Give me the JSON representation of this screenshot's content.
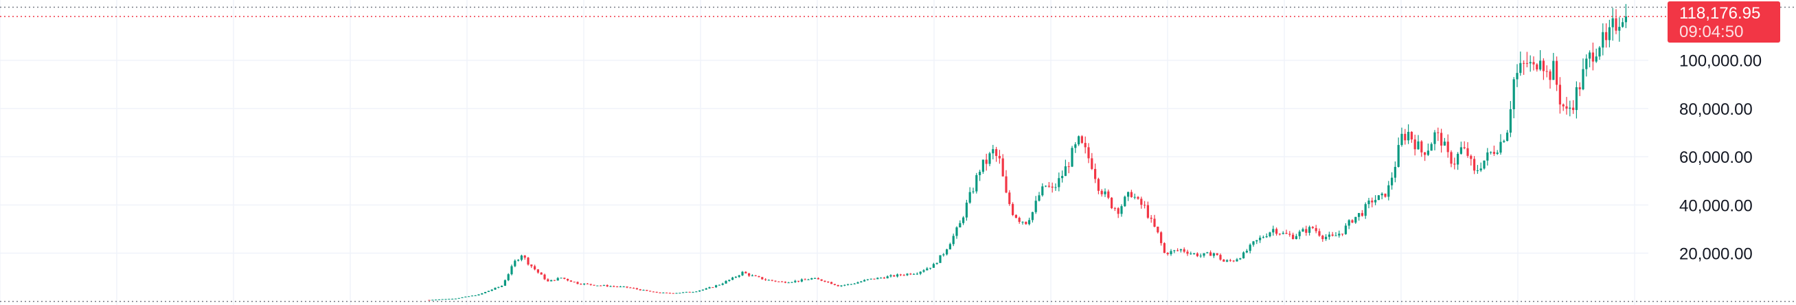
{
  "chart_data": {
    "type": "candlestick",
    "y_axis": {
      "ticks": [
        {
          "value": 20000,
          "label": "20,000.00"
        },
        {
          "value": 40000,
          "label": "40,000.00"
        },
        {
          "value": 60000,
          "label": "60,000.00"
        },
        {
          "value": 80000,
          "label": "80,000.00"
        },
        {
          "value": 100000,
          "label": "100,000.00"
        }
      ],
      "ylim": [
        -1500,
        125000
      ]
    },
    "grid": true,
    "last_price": {
      "value": 118176.95,
      "label": "118,176.95",
      "countdown": "09:04:50"
    },
    "reference_lines": {
      "high": 122000,
      "low": 0
    },
    "anchors": [
      [
        0,
        600
      ],
      [
        8,
        1200
      ],
      [
        15,
        2800
      ],
      [
        22,
        6500
      ],
      [
        26,
        16500
      ],
      [
        28,
        19500
      ],
      [
        30,
        16000
      ],
      [
        33,
        12000
      ],
      [
        36,
        8200
      ],
      [
        40,
        9800
      ],
      [
        45,
        7500
      ],
      [
        50,
        6800
      ],
      [
        56,
        6200
      ],
      [
        60,
        5800
      ],
      [
        64,
        4800
      ],
      [
        68,
        3800
      ],
      [
        72,
        3400
      ],
      [
        76,
        3600
      ],
      [
        80,
        4000
      ],
      [
        84,
        5200
      ],
      [
        88,
        7000
      ],
      [
        92,
        9500
      ],
      [
        95,
        12000
      ],
      [
        98,
        10500
      ],
      [
        102,
        9000
      ],
      [
        107,
        8000
      ],
      [
        112,
        8500
      ],
      [
        116,
        9500
      ],
      [
        120,
        8500
      ],
      [
        124,
        6500
      ],
      [
        128,
        7200
      ],
      [
        133,
        9000
      ],
      [
        138,
        10000
      ],
      [
        143,
        11000
      ],
      [
        148,
        12000
      ],
      [
        153,
        15000
      ],
      [
        156,
        20000
      ],
      [
        159,
        27000
      ],
      [
        161,
        32000
      ],
      [
        163,
        40000
      ],
      [
        165,
        47000
      ],
      [
        167,
        55000
      ],
      [
        169,
        58000
      ],
      [
        171,
        62000
      ],
      [
        173,
        58000
      ],
      [
        175,
        44000
      ],
      [
        177,
        37000
      ],
      [
        179,
        34000
      ],
      [
        181,
        33000
      ],
      [
        183,
        37000
      ],
      [
        185,
        44000
      ],
      [
        187,
        48000
      ],
      [
        189,
        46000
      ],
      [
        191,
        50000
      ],
      [
        193,
        55000
      ],
      [
        195,
        61000
      ],
      [
        197,
        66000
      ],
      [
        199,
        62000
      ],
      [
        201,
        57000
      ],
      [
        203,
        48000
      ],
      [
        205,
        44000
      ],
      [
        207,
        40000
      ],
      [
        209,
        38000
      ],
      [
        211,
        42000
      ],
      [
        213,
        45000
      ],
      [
        215,
        41000
      ],
      [
        217,
        39000
      ],
      [
        219,
        33000
      ],
      [
        221,
        28000
      ],
      [
        223,
        20000
      ],
      [
        225,
        20500
      ],
      [
        228,
        21500
      ],
      [
        231,
        20000
      ],
      [
        234,
        19000
      ],
      [
        238,
        20000
      ],
      [
        241,
        16500
      ],
      [
        244,
        17000
      ],
      [
        247,
        19500
      ],
      [
        250,
        24000
      ],
      [
        253,
        27000
      ],
      [
        256,
        30000
      ],
      [
        259,
        28000
      ],
      [
        262,
        27000
      ],
      [
        265,
        29000
      ],
      [
        268,
        30500
      ],
      [
        271,
        27000
      ],
      [
        274,
        26500
      ],
      [
        277,
        29000
      ],
      [
        280,
        34000
      ],
      [
        283,
        37000
      ],
      [
        286,
        42000
      ],
      [
        289,
        43000
      ],
      [
        291,
        47000
      ],
      [
        293,
        57000
      ],
      [
        295,
        68000
      ],
      [
        297,
        70000
      ],
      [
        299,
        66000
      ],
      [
        301,
        62000
      ],
      [
        303,
        64000
      ],
      [
        305,
        69000
      ],
      [
        307,
        67000
      ],
      [
        309,
        60000
      ],
      [
        311,
        58000
      ],
      [
        313,
        63000
      ],
      [
        315,
        61000
      ],
      [
        317,
        53000
      ],
      [
        319,
        57000
      ],
      [
        321,
        60000
      ],
      [
        323,
        63000
      ],
      [
        325,
        66000
      ],
      [
        327,
        72000
      ],
      [
        329,
        92000
      ],
      [
        331,
        96000
      ],
      [
        333,
        99000
      ],
      [
        335,
        96000
      ],
      [
        337,
        104000
      ],
      [
        339,
        94000
      ],
      [
        341,
        96000
      ],
      [
        343,
        84000
      ],
      [
        345,
        78000
      ],
      [
        347,
        83000
      ],
      [
        349,
        90000
      ],
      [
        351,
        98000
      ],
      [
        353,
        104000
      ],
      [
        355,
        108000
      ],
      [
        357,
        106000
      ],
      [
        359,
        113000
      ],
      [
        361,
        118000
      ],
      [
        362,
        120000
      ],
      [
        363,
        118176.95
      ]
    ],
    "total_candles": 364
  }
}
